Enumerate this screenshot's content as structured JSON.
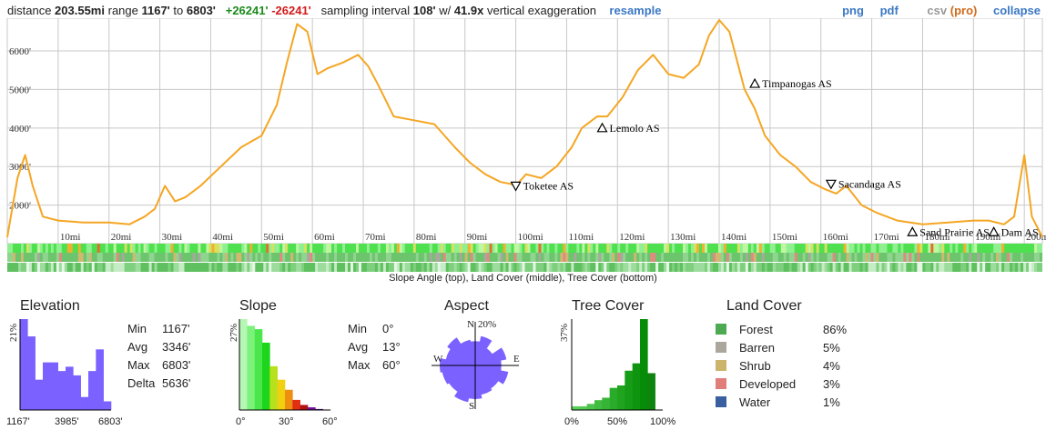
{
  "header": {
    "distance_label": "distance",
    "distance": "203.55mi",
    "range_label": "range",
    "range_low": "1167'",
    "range_to": "to",
    "range_high": "6803'",
    "gain": "+26241'",
    "loss": "-26241'",
    "sampling_label": "sampling interval",
    "sampling": "108'",
    "w_label": "w/",
    "exaggeration": "41.9x",
    "exaggeration_label": "vertical exaggeration",
    "resample": "resample",
    "png": "png",
    "pdf": "pdf",
    "csv": "csv",
    "pro": "(pro)",
    "collapse": "collapse"
  },
  "strips_caption": "Slope Angle (top), Land Cover (middle), Tree Cover (bottom)",
  "colors": {
    "profile_line": "#f5a623",
    "hist": "#7b61ff",
    "grid": "#c8c8c8",
    "forest": "#4daa52",
    "barren": "#aba79c",
    "shrub": "#cdb46b",
    "developed": "#e07f7a",
    "water": "#3a5fa0",
    "link": "#3b78c4"
  },
  "chart_data": [
    {
      "type": "line",
      "title": "",
      "xlabel": "",
      "ylabel": "",
      "xlim": [
        0,
        203.55
      ],
      "ylim": [
        1167,
        6803
      ],
      "x_ticks": [
        "10mi",
        "20mi",
        "30mi",
        "40mi",
        "50mi",
        "60mi",
        "70mi",
        "80mi",
        "90mi",
        "100mi",
        "110mi",
        "120mi",
        "130mi",
        "140mi",
        "150mi",
        "160mi",
        "170mi",
        "180mi",
        "190mi",
        "200mi"
      ],
      "y_ticks": [
        "2000'",
        "3000'",
        "4000'",
        "5000'",
        "6000'"
      ],
      "x": [
        0,
        2,
        3.5,
        5,
        7,
        10,
        15,
        20,
        24,
        27,
        29,
        31,
        33,
        35,
        38,
        42,
        46,
        50,
        53,
        55,
        57,
        59,
        61,
        63,
        66,
        69,
        71,
        73,
        76,
        80,
        84,
        88,
        91,
        94,
        97,
        99,
        100,
        102,
        105,
        108,
        111,
        113,
        116,
        118,
        121,
        124,
        127,
        130,
        133,
        136,
        138,
        140,
        142,
        145,
        147,
        149,
        152,
        155,
        158,
        161,
        163,
        165,
        168,
        171,
        175,
        180,
        185,
        190,
        193,
        196,
        198,
        200,
        201.5,
        203.55
      ],
      "y": [
        1167,
        2700,
        3300,
        2500,
        1700,
        1600,
        1550,
        1550,
        1500,
        1700,
        1900,
        2500,
        2100,
        2200,
        2500,
        3000,
        3500,
        3800,
        4600,
        5700,
        6700,
        6500,
        5400,
        5550,
        5700,
        5900,
        5600,
        5100,
        4300,
        4200,
        4100,
        3500,
        3100,
        2800,
        2600,
        2550,
        2500,
        2800,
        2700,
        3000,
        3500,
        4000,
        4300,
        4300,
        4800,
        5500,
        5900,
        5400,
        5300,
        5650,
        6400,
        6803,
        6500,
        5000,
        4500,
        3800,
        3300,
        3000,
        2600,
        2400,
        2300,
        2500,
        2000,
        1800,
        1600,
        1500,
        1550,
        1600,
        1600,
        1500,
        1700,
        3300,
        1700,
        1167
      ],
      "annotations": [
        {
          "label": "Toketee AS",
          "x": 100,
          "y": 2500,
          "marker": "down"
        },
        {
          "label": "Lemolo AS",
          "x": 117,
          "y": 4000,
          "marker": "up"
        },
        {
          "label": "Timpanogas AS",
          "x": 147,
          "y": 5150,
          "marker": "up"
        },
        {
          "label": "Sacandaga AS",
          "x": 162,
          "y": 2550,
          "marker": "down"
        },
        {
          "label": "Sand Prairie AS",
          "x": 178,
          "y": 1300,
          "marker": "up"
        },
        {
          "label": "Dam AS",
          "x": 194,
          "y": 1300,
          "marker": "up"
        }
      ]
    },
    {
      "type": "bar",
      "title": "Elevation",
      "ymax_label": "21%",
      "xlabels": [
        "1167'",
        "3985'",
        "6803'"
      ],
      "values": [
        21,
        17,
        7,
        11,
        11,
        9,
        10,
        8,
        3,
        9,
        14,
        2
      ],
      "stats": [
        {
          "k": "Min",
          "v": "1167'"
        },
        {
          "k": "Avg",
          "v": "3346'"
        },
        {
          "k": "Max",
          "v": "6803'"
        },
        {
          "k": "Delta",
          "v": "5636'"
        }
      ]
    },
    {
      "type": "bar",
      "title": "Slope",
      "ymax_label": "27%",
      "xlabels": [
        "0°",
        "30°",
        "60°"
      ],
      "values": [
        27,
        25,
        24,
        20,
        13,
        9,
        6,
        3,
        1.5,
        0.8,
        0.3,
        0.1
      ],
      "bar_colors": [
        "#b6f7b6",
        "#7cf27c",
        "#4be64b",
        "#1cd61c",
        "#b7e01d",
        "#f0d010",
        "#ef8f12",
        "#e02f12",
        "#b21212",
        "#72129a",
        "#4d0f7a",
        "#2f0a5a"
      ],
      "stats": [
        {
          "k": "Min",
          "v": "0°"
        },
        {
          "k": "Avg",
          "v": "13°"
        },
        {
          "k": "Max",
          "v": "60°"
        }
      ]
    },
    {
      "type": "pie",
      "title": "Aspect",
      "max_label": "20%",
      "directions": [
        "N",
        "E",
        "S",
        "W"
      ],
      "values": [
        0.65,
        0.8,
        0.55,
        0.85,
        0.7,
        0.9,
        0.75,
        0.8,
        0.9,
        1.0,
        0.85,
        0.9,
        0.95,
        0.8,
        0.9,
        0.7
      ]
    },
    {
      "type": "bar",
      "title": "Tree Cover",
      "ymax_label": "37%",
      "xlabels": [
        "0%",
        "50%",
        "100%"
      ],
      "values": [
        1.5,
        1.5,
        2.5,
        4,
        5,
        9,
        10,
        16,
        19,
        37,
        15,
        0
      ],
      "bar_colors": [
        "#58d058",
        "#54cc54",
        "#4cc44c",
        "#40bc40",
        "#36b436",
        "#2aac2a",
        "#20a420",
        "#169c16",
        "#0e940e",
        "#068c06",
        "#108410",
        "#0c7c0c"
      ]
    }
  ],
  "land_cover": {
    "title": "Land Cover",
    "items": [
      {
        "name": "Forest",
        "pct": "86%",
        "color": "#4daa52"
      },
      {
        "name": "Barren",
        "pct": "5%",
        "color": "#aba79c"
      },
      {
        "name": "Shrub",
        "pct": "4%",
        "color": "#cdb46b"
      },
      {
        "name": "Developed",
        "pct": "3%",
        "color": "#e07f7a"
      },
      {
        "name": "Water",
        "pct": "1%",
        "color": "#3a5fa0"
      }
    ]
  }
}
